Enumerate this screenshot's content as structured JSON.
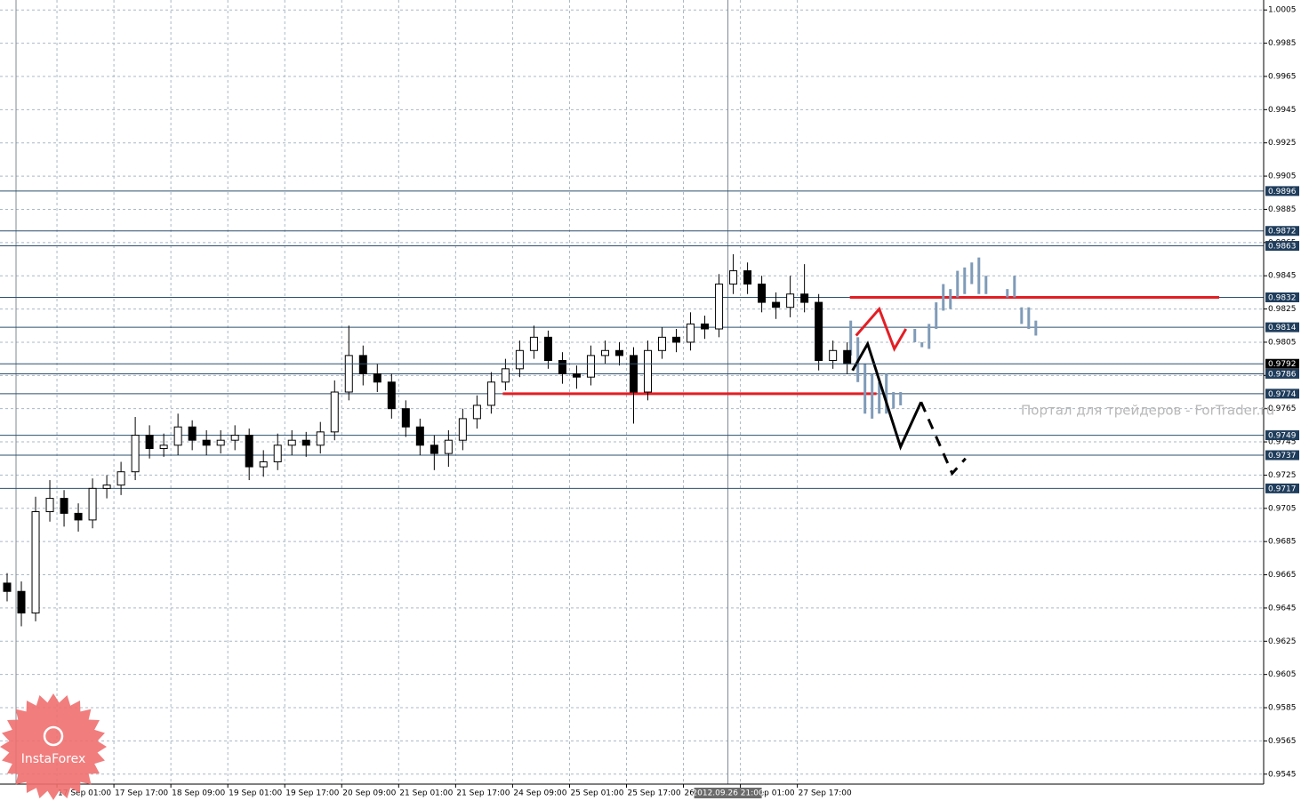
{
  "chart_data": {
    "type": "candlestick",
    "xlim": [
      0,
      355
    ],
    "ylim": [
      0.9539,
      1.0011
    ],
    "yticks": [
      1.0005,
      0.9985,
      0.9965,
      0.9945,
      0.9925,
      0.9905,
      0.9885,
      0.9865,
      0.9845,
      0.9825,
      0.9805,
      0.9785,
      0.9765,
      0.9745,
      0.9725,
      0.9705,
      0.9685,
      0.9665,
      0.9645,
      0.9625,
      0.9605,
      0.9585,
      0.9565,
      0.9545
    ],
    "xticks": [
      {
        "value": 16,
        "label": "17 Sep 01:00"
      },
      {
        "value": 32,
        "label": "17 Sep 17:00"
      },
      {
        "value": 48,
        "label": "18 Sep 09:00"
      },
      {
        "value": 64,
        "label": "19 Sep 01:00"
      },
      {
        "value": 80,
        "label": "19 Sep 17:00"
      },
      {
        "value": 96,
        "label": "20 Sep 09:00"
      },
      {
        "value": 112,
        "label": "21 Sep 01:00"
      },
      {
        "value": 128,
        "label": "21 Sep 17:00"
      },
      {
        "value": 144,
        "label": "24 Sep 09:00"
      },
      {
        "value": 160,
        "label": "25 Sep 01:00"
      },
      {
        "value": 176,
        "label": "25 Sep 17:00"
      },
      {
        "value": 192,
        "label": "26 Sep 09:00"
      },
      {
        "value": 208,
        "label": "27 Sep 01:00"
      },
      {
        "value": 224,
        "label": "27 Sep 17:00"
      }
    ],
    "grid": true,
    "x": [
      2,
      6,
      10,
      14,
      18,
      22,
      26,
      30,
      34,
      38,
      42,
      46,
      50,
      54,
      58,
      62,
      66,
      70,
      74,
      78,
      82,
      86,
      90,
      94,
      98,
      102,
      106,
      110,
      114,
      118,
      122,
      126,
      130,
      134,
      138,
      142,
      146,
      150,
      154,
      158,
      162,
      166,
      170,
      174,
      178,
      182,
      186,
      190,
      194,
      198,
      202,
      206,
      210,
      214,
      218,
      222,
      226,
      230,
      234,
      238
    ],
    "open": [
      0.966,
      0.9655,
      0.9642,
      0.9703,
      0.9711,
      0.9702,
      0.9698,
      0.9717,
      0.9719,
      0.9727,
      0.9749,
      0.9741,
      0.9743,
      0.9754,
      0.9746,
      0.9743,
      0.9746,
      0.9749,
      0.973,
      0.9733,
      0.9743,
      0.9746,
      0.9743,
      0.9751,
      0.9775,
      0.9797,
      0.9786,
      0.9781,
      0.9765,
      0.9754,
      0.9743,
      0.9738,
      0.9746,
      0.9759,
      0.9767,
      0.9781,
      0.9789,
      0.98,
      0.9808,
      0.9794,
      0.9786,
      0.9784,
      0.9797,
      0.98,
      0.9797,
      0.9775,
      0.98,
      0.9808,
      0.9805,
      0.9816,
      0.9813,
      0.984,
      0.9848,
      0.984,
      0.9829,
      0.9826,
      0.9834,
      0.9829,
      0.9794,
      0.98
    ],
    "high": [
      0.9666,
      0.9661,
      0.9712,
      0.9722,
      0.9716,
      0.9708,
      0.9723,
      0.9725,
      0.9733,
      0.976,
      0.9755,
      0.975,
      0.9762,
      0.9758,
      0.9752,
      0.9752,
      0.9755,
      0.9753,
      0.974,
      0.975,
      0.9752,
      0.9751,
      0.9757,
      0.9782,
      0.9815,
      0.9803,
      0.9792,
      0.9786,
      0.977,
      0.9759,
      0.9749,
      0.9752,
      0.9765,
      0.9773,
      0.9787,
      0.9795,
      0.9806,
      0.9815,
      0.9812,
      0.9799,
      0.9791,
      0.9803,
      0.9806,
      0.9805,
      0.9802,
      0.9806,
      0.9814,
      0.9813,
      0.9823,
      0.9821,
      0.9846,
      0.9858,
      0.9853,
      0.9845,
      0.9835,
      0.9845,
      0.9852,
      0.9834,
      0.9806,
      0.9805
    ],
    "low": [
      0.9649,
      0.9634,
      0.9637,
      0.9697,
      0.9694,
      0.9691,
      0.9693,
      0.9711,
      0.9713,
      0.9722,
      0.9735,
      0.9736,
      0.9737,
      0.974,
      0.9737,
      0.9738,
      0.974,
      0.9722,
      0.9724,
      0.9728,
      0.9737,
      0.9736,
      0.9738,
      0.9746,
      0.977,
      0.9779,
      0.9775,
      0.9759,
      0.9748,
      0.9737,
      0.9728,
      0.973,
      0.974,
      0.9753,
      0.9762,
      0.9776,
      0.9784,
      0.9795,
      0.9789,
      0.978,
      0.9777,
      0.9779,
      0.9792,
      0.9791,
      0.9756,
      0.977,
      0.9795,
      0.9799,
      0.98,
      0.9807,
      0.9808,
      0.9834,
      0.9834,
      0.9823,
      0.9819,
      0.982,
      0.9823,
      0.9788,
      0.9789,
      0.9786
    ],
    "close": [
      0.9655,
      0.9642,
      0.9703,
      0.9711,
      0.9702,
      0.9698,
      0.9717,
      0.9719,
      0.9727,
      0.9749,
      0.9741,
      0.9743,
      0.9754,
      0.9746,
      0.9743,
      0.9746,
      0.9749,
      0.973,
      0.9733,
      0.9743,
      0.9746,
      0.9743,
      0.9751,
      0.9775,
      0.9797,
      0.9786,
      0.9781,
      0.9765,
      0.9754,
      0.9743,
      0.9738,
      0.9746,
      0.9759,
      0.9767,
      0.9781,
      0.9789,
      0.98,
      0.9808,
      0.9794,
      0.9786,
      0.9784,
      0.9797,
      0.98,
      0.9797,
      0.9775,
      0.98,
      0.9808,
      0.9805,
      0.9816,
      0.9813,
      0.984,
      0.9848,
      0.984,
      0.9829,
      0.9826,
      0.9834,
      0.9829,
      0.9794,
      0.98,
      0.9792
    ],
    "ghost": {
      "color": "#7f9bb8",
      "x": [
        239,
        241,
        243,
        245,
        247,
        249,
        251,
        253,
        257,
        259,
        261,
        263,
        265,
        267,
        269,
        271,
        273,
        275,
        277,
        283,
        285,
        287,
        289,
        291
      ],
      "high": [
        0.9818,
        0.9808,
        0.9792,
        0.9786,
        0.9781,
        0.9786,
        0.9775,
        0.9775,
        0.9813,
        0.9805,
        0.9816,
        0.9829,
        0.984,
        0.9837,
        0.9848,
        0.985,
        0.9853,
        0.9856,
        0.9845,
        0.9837,
        0.9845,
        0.9826,
        0.9826,
        0.9818
      ],
      "low": [
        0.9797,
        0.9781,
        0.9762,
        0.9759,
        0.9762,
        0.9762,
        0.9765,
        0.9767,
        0.9805,
        0.9802,
        0.9801,
        0.9813,
        0.9824,
        0.9825,
        0.9832,
        0.9834,
        0.984,
        0.9834,
        0.9834,
        0.9832,
        0.9832,
        0.9816,
        0.9813,
        0.9809
      ]
    },
    "levels": [
      0.9896,
      0.9872,
      0.9863,
      0.9832,
      0.9814,
      0.9786,
      0.9774,
      0.9749,
      0.9737,
      0.9717
    ],
    "current_price": 0.9792,
    "red_lines": [
      {
        "value": 0.9832,
        "x": [
          238.75,
          342.5
        ]
      },
      {
        "value": 0.9774,
        "x": [
          141.25,
          246.25
        ]
      }
    ],
    "annotations": [
      {
        "color": "#000000",
        "dash": false,
        "x": [
          239.5,
          243.75,
          253,
          258.75
        ],
        "y": [
          0.9788,
          0.9804,
          0.9742,
          0.9769
        ]
      },
      {
        "color": "#000000",
        "dash": true,
        "x": [
          258.75,
          267.5,
          271.25
        ],
        "y": [
          0.9769,
          0.9726,
          0.9735
        ]
      },
      {
        "color": "#e31e24",
        "dash": false,
        "x": [
          240.5,
          247,
          251.25,
          254.5
        ],
        "y": [
          0.9809,
          0.9825,
          0.9801,
          0.9813
        ]
      }
    ],
    "vlines": [
      4.5,
      204.5
    ],
    "crosshair_label": "2012.09.26 21:00",
    "watermark": "Портал для трейдеров - ForTrader.ru",
    "badge": "InstaForex"
  }
}
